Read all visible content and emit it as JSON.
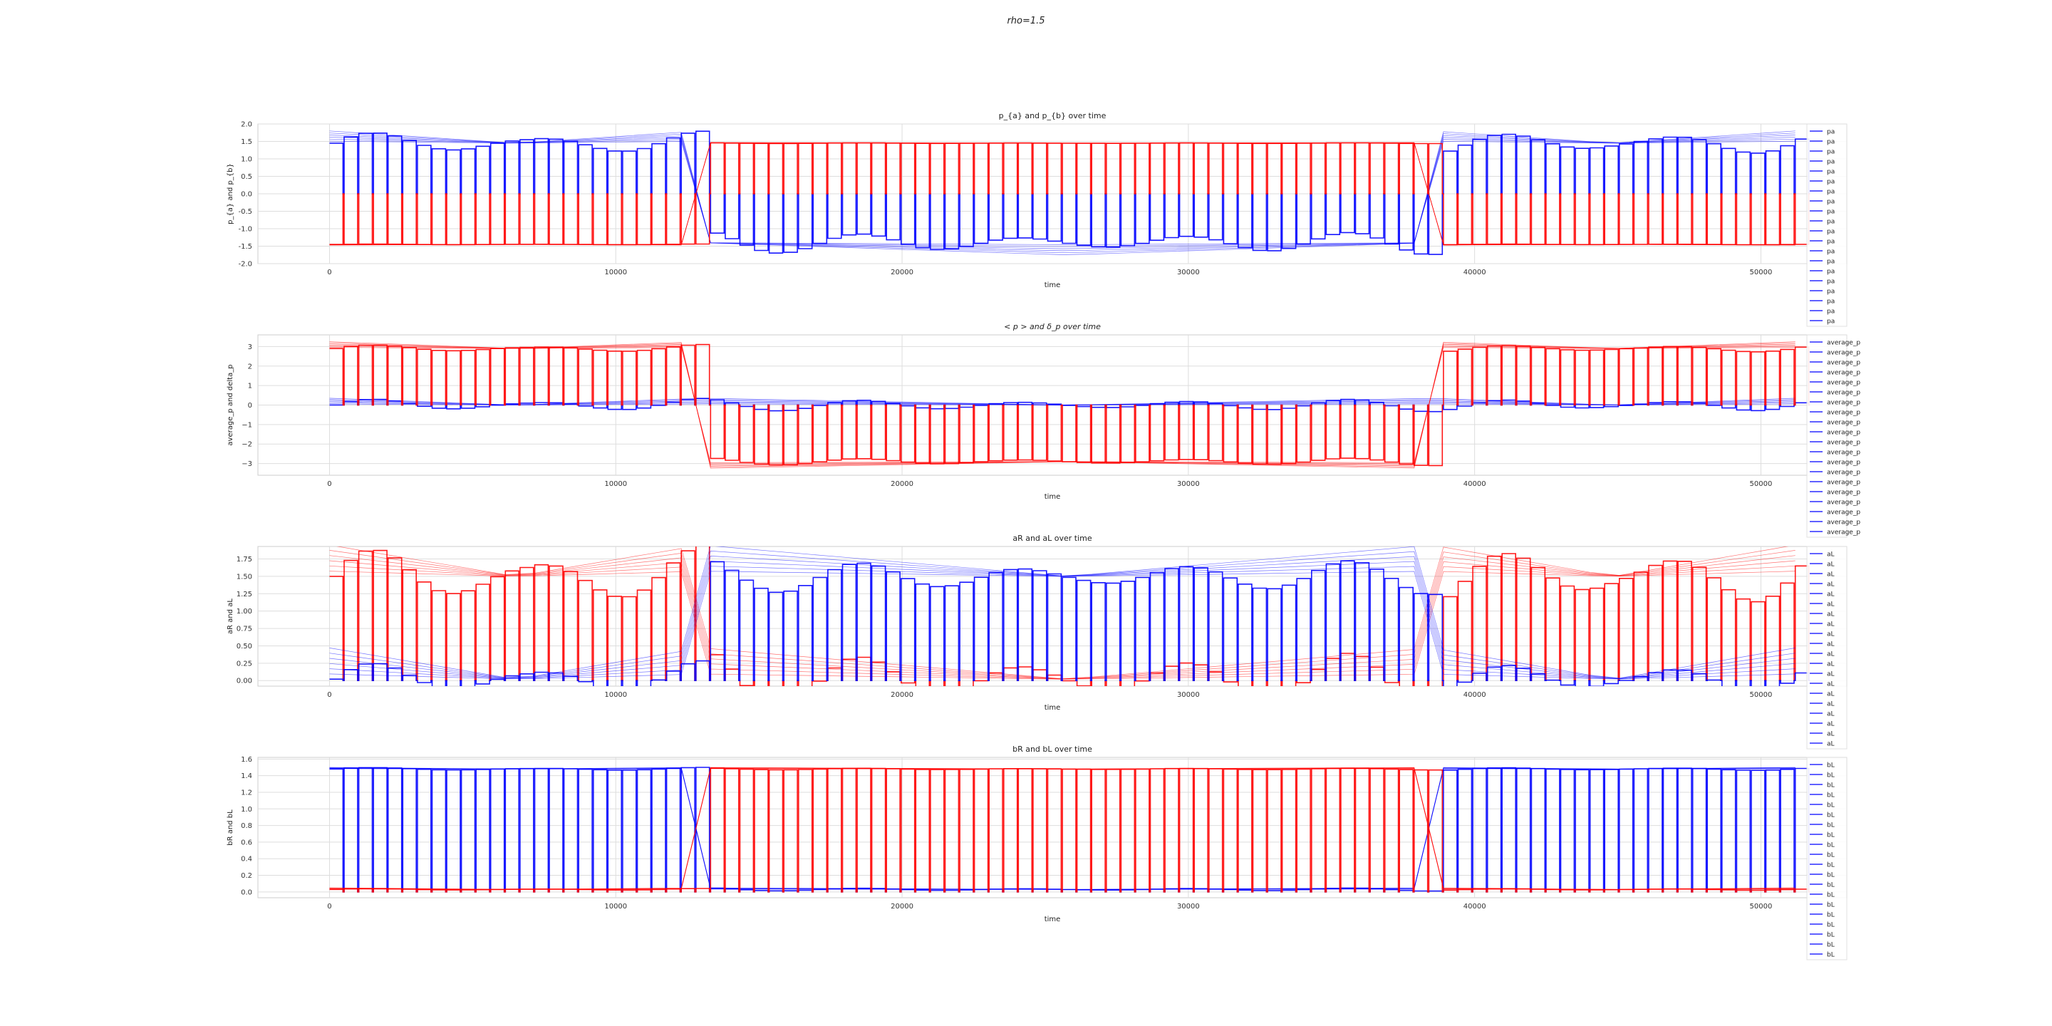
{
  "figure": {
    "suptitle": "rho=1.5"
  },
  "colors": {
    "pa": "#0000ff",
    "pb": "#ff0000",
    "grid": "#dddddd",
    "axis": "#cccccc"
  },
  "chart_data": [
    {
      "type": "line",
      "title": "p_{a} and p_{b} over time",
      "xlabel": "time",
      "ylabel": "p_{a} and p_{b}",
      "xlim": [
        -2500,
        53000
      ],
      "ylim": [
        -2.0,
        2.0
      ],
      "xticks": [
        0,
        10000,
        20000,
        30000,
        40000,
        50000
      ],
      "xtick_labels": [
        "0",
        "10000",
        "20000",
        "30000",
        "40000",
        "50000"
      ],
      "yticks": [
        -2.0,
        -1.5,
        -1.0,
        -0.5,
        0.0,
        0.5,
        1.0,
        1.5,
        2.0
      ],
      "ytick_labels": [
        "-2.0",
        "-1.5",
        "-1.0",
        "-0.5",
        "0.0",
        "0.5",
        "1.0",
        "1.5",
        "2.0"
      ],
      "period": 512,
      "series": [
        {
          "name": "pa",
          "color": "#0000ff",
          "phases": [
            [
              0,
              13000,
              1.45
            ],
            [
              13000,
              38500,
              -1.4
            ],
            [
              38500,
              51200,
              1.45
            ]
          ],
          "spread": 0.35
        },
        {
          "name": "pb",
          "color": "#ff0000",
          "phases": [
            [
              0,
              13000,
              -1.45
            ],
            [
              13000,
              38500,
              1.45
            ],
            [
              38500,
              51200,
              -1.45
            ]
          ],
          "spread": 0.02
        }
      ],
      "legend": {
        "location": "right",
        "entries": [
          "pa",
          "pa",
          "pa",
          "pa",
          "pa",
          "pa",
          "pa",
          "pa",
          "pa",
          "pa",
          "pa",
          "pa",
          "pa",
          "pa",
          "pa",
          "pa",
          "pa",
          "pa",
          "pa",
          "pa"
        ],
        "color": "#0000ff"
      }
    },
    {
      "type": "line",
      "title": "< p > and δ_p over time",
      "xlabel": "time",
      "ylabel": "average_p and delta_p",
      "xlim": [
        -2500,
        53000
      ],
      "ylim": [
        -3.6,
        3.6
      ],
      "xticks": [
        0,
        10000,
        20000,
        30000,
        40000,
        50000
      ],
      "xtick_labels": [
        "0",
        "10000",
        "20000",
        "30000",
        "40000",
        "50000"
      ],
      "yticks": [
        -3,
        -2,
        -1,
        0,
        1,
        2,
        3
      ],
      "ytick_labels": [
        "−3",
        "−2",
        "−1",
        "0",
        "1",
        "2",
        "3"
      ],
      "period": 512,
      "series": [
        {
          "name": "average_p",
          "color": "#0000ff",
          "phases": [
            [
              0,
              13000,
              0.0
            ],
            [
              13000,
              38500,
              0.0
            ],
            [
              38500,
              51200,
              0.0
            ]
          ],
          "spread": 0.35
        },
        {
          "name": "delta_p",
          "color": "#ff0000",
          "phases": [
            [
              0,
              13000,
              2.9
            ],
            [
              13000,
              38500,
              -2.9
            ],
            [
              38500,
              51200,
              2.9
            ]
          ],
          "spread": 0.35
        }
      ],
      "legend": {
        "location": "right",
        "entries": [
          "average_p",
          "average_p",
          "average_p",
          "average_p",
          "average_p",
          "average_p",
          "average_p",
          "average_p",
          "average_p",
          "average_p",
          "average_p",
          "average_p",
          "average_p",
          "average_p",
          "average_p",
          "average_p",
          "average_p",
          "average_p",
          "average_p",
          "average_p"
        ],
        "color": "#0000ff"
      }
    },
    {
      "type": "line",
      "title": "aR and aL over time",
      "xlabel": "time",
      "ylabel": "aR and aL",
      "xlim": [
        -2500,
        53000
      ],
      "ylim": [
        -0.08,
        1.93
      ],
      "xticks": [
        0,
        10000,
        20000,
        30000,
        40000,
        50000
      ],
      "xtick_labels": [
        "0",
        "10000",
        "20000",
        "30000",
        "40000",
        "50000"
      ],
      "yticks": [
        0.0,
        0.25,
        0.5,
        0.75,
        1.0,
        1.25,
        1.5,
        1.75
      ],
      "ytick_labels": [
        "0.00",
        "0.25",
        "0.50",
        "0.75",
        "1.00",
        "1.25",
        "1.50",
        "1.75"
      ],
      "period": 512,
      "series": [
        {
          "name": "aR",
          "color": "#ff0000",
          "phases": [
            [
              0,
              13000,
              1.5
            ],
            [
              13000,
              38500,
              0.02
            ],
            [
              38500,
              51200,
              1.5
            ]
          ],
          "spread": 0.45
        },
        {
          "name": "aL",
          "color": "#0000ff",
          "phases": [
            [
              0,
              13000,
              0.02
            ],
            [
              13000,
              38500,
              1.5
            ],
            [
              38500,
              51200,
              0.02
            ]
          ],
          "spread": 0.45
        }
      ],
      "legend": {
        "location": "right",
        "entries": [
          "aL",
          "aL",
          "aL",
          "aL",
          "aL",
          "aL",
          "aL",
          "aL",
          "aL",
          "aL",
          "aL",
          "aL",
          "aL",
          "aL",
          "aL",
          "aL",
          "aL",
          "aL",
          "aL",
          "aL"
        ],
        "color": "#0000ff"
      }
    },
    {
      "type": "line",
      "title": "bR and bL over time",
      "xlabel": "time",
      "ylabel": "bR and bL",
      "xlim": [
        -2500,
        53000
      ],
      "ylim": [
        -0.07,
        1.62
      ],
      "xticks": [
        0,
        10000,
        20000,
        30000,
        40000,
        50000
      ],
      "xtick_labels": [
        "0",
        "10000",
        "20000",
        "30000",
        "40000",
        "50000"
      ],
      "yticks": [
        0.0,
        0.2,
        0.4,
        0.6,
        0.8,
        1.0,
        1.2,
        1.4,
        1.6
      ],
      "ytick_labels": [
        "0.0",
        "0.2",
        "0.4",
        "0.6",
        "0.8",
        "1.0",
        "1.2",
        "1.4",
        "1.6"
      ],
      "period": 512,
      "series": [
        {
          "name": "bL",
          "color": "#0000ff",
          "phases": [
            [
              0,
              13000,
              1.48
            ],
            [
              13000,
              38500,
              0.03
            ],
            [
              38500,
              51200,
              1.48
            ]
          ],
          "spread": 0.02
        },
        {
          "name": "bR",
          "color": "#ff0000",
          "phases": [
            [
              0,
              13000,
              0.03
            ],
            [
              13000,
              38500,
              1.48
            ],
            [
              38500,
              51200,
              0.03
            ]
          ],
          "spread": 0.02
        }
      ],
      "legend": {
        "location": "right",
        "entries": [
          "bL",
          "bL",
          "bL",
          "bL",
          "bL",
          "bL",
          "bL",
          "bL",
          "bL",
          "bL",
          "bL",
          "bL",
          "bL",
          "bL",
          "bL",
          "bL",
          "bL",
          "bL",
          "bL",
          "bL"
        ],
        "color": "#0000ff"
      }
    }
  ]
}
